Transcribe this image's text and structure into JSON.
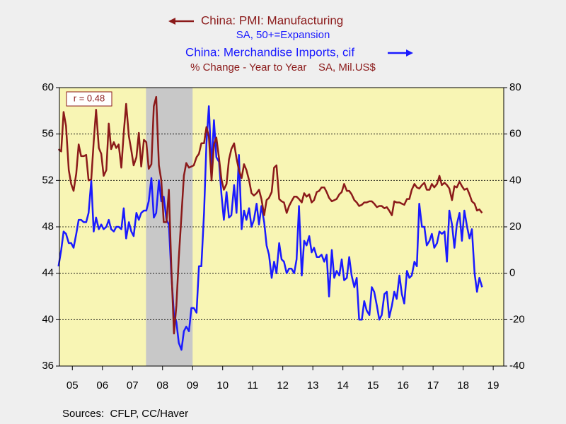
{
  "chart_data": {
    "type": "line",
    "series": [
      {
        "name": "China: PMI: Manufacturing",
        "note": "SA, 50+=Expansion",
        "color": "#8b1a1a",
        "axis": "y",
        "values": [
          54.7,
          54.5,
          57.9,
          56.7,
          52.9,
          51.7,
          51.1,
          52.6,
          55.1,
          54.1,
          54.1,
          54.2,
          52.0,
          52.1,
          55.3,
          58.1,
          54.8,
          54.3,
          52.4,
          52.9,
          56.9,
          54.7,
          55.3,
          54.8,
          55.1,
          53.1,
          56.1,
          58.6,
          55.8,
          54.6,
          53.3,
          54.0,
          56.1,
          53.2,
          55.5,
          55.3,
          53.0,
          53.4,
          58.4,
          59.2,
          53.3,
          52.0,
          48.4,
          48.4,
          51.2,
          44.6,
          38.8,
          41.2,
          45.3,
          49.0,
          52.4,
          53.5,
          53.1,
          53.2,
          53.3,
          54.0,
          54.3,
          55.2,
          55.2,
          56.6,
          55.8,
          52.0,
          55.1,
          55.7,
          53.9,
          52.1,
          51.2,
          51.7,
          53.8,
          54.7,
          55.2,
          53.9,
          52.9,
          52.2,
          53.4,
          52.9,
          52.0,
          50.9,
          50.7,
          50.9,
          51.2,
          50.4,
          49.0,
          50.3,
          50.5,
          51.0,
          53.1,
          53.3,
          50.4,
          50.2,
          50.1,
          49.2,
          49.8,
          50.2,
          50.6,
          50.6,
          50.4,
          50.1,
          50.9,
          50.6,
          50.8,
          50.1,
          50.3,
          51.0,
          51.1,
          51.4,
          51.4,
          51.0,
          50.5,
          50.2,
          50.3,
          50.4,
          50.8,
          51.0,
          51.7,
          51.1,
          51.1,
          50.8,
          50.3,
          50.1,
          49.8,
          49.9,
          50.1,
          50.1,
          50.2,
          50.2,
          50.0,
          49.7,
          49.8,
          49.8,
          49.6,
          49.7,
          49.4,
          49.0,
          50.2,
          50.1,
          50.1,
          50.0,
          49.9,
          50.4,
          50.4,
          51.2,
          51.7,
          51.4,
          51.3,
          51.6,
          51.8,
          51.2,
          51.2,
          51.7,
          51.4,
          51.7,
          52.4,
          51.6,
          51.8,
          51.6,
          51.3,
          50.3,
          51.5,
          51.4,
          51.9,
          51.5,
          51.2,
          51.3,
          50.8,
          50.2,
          50.0,
          49.4,
          49.5,
          49.2
        ]
      },
      {
        "name": "China: Merchandise Imports, cif",
        "note": "% Change - Year to Year    SA, Mil.US$",
        "color": "#1a1aff",
        "axis": "y2",
        "values": [
          3,
          10,
          18,
          17,
          13,
          13,
          11,
          17,
          23,
          23,
          22,
          22,
          26,
          40,
          18,
          24,
          19,
          21,
          19,
          20,
          23,
          19,
          18,
          20,
          20,
          19,
          28,
          15,
          22,
          18,
          16,
          26,
          23,
          26,
          27,
          27,
          31,
          41,
          24,
          26,
          40,
          31,
          33,
          23,
          21,
          0,
          -18,
          -21,
          -30,
          -33,
          -25,
          -23,
          -25,
          -15,
          -15,
          -17,
          3,
          3,
          26,
          56,
          72,
          45,
          66,
          50,
          48,
          34,
          23,
          35,
          24,
          25,
          38,
          26,
          51,
          19,
          27,
          23,
          28,
          20,
          23,
          30,
          21,
          29,
          22,
          12,
          8,
          -2,
          5,
          0,
          13,
          6,
          5,
          0,
          2,
          2,
          0,
          6,
          29,
          -1,
          14,
          12,
          16,
          9,
          11,
          7,
          7,
          8,
          5,
          8,
          -10,
          10,
          -2,
          1,
          -1,
          6,
          -3,
          -2,
          7,
          -1,
          -6,
          -2,
          -20,
          -20,
          -12,
          -16,
          -18,
          -6,
          -8,
          -14,
          -20,
          -18,
          -9,
          -8,
          -19,
          -14,
          -8,
          -11,
          -1,
          -9,
          -13,
          1,
          -2,
          -1,
          5,
          3,
          30,
          20,
          20,
          12,
          14,
          17,
          11,
          13,
          18,
          17,
          18,
          5,
          27,
          21,
          11,
          21,
          26,
          14,
          27,
          20,
          15,
          19,
          0,
          -8,
          -2,
          -6
        ]
      }
    ],
    "x": [
      2005.04,
      2005.13,
      2005.21,
      2005.29,
      2005.38,
      2005.46,
      2005.54,
      2005.63,
      2005.71,
      2005.79,
      2005.88,
      2005.96,
      2006.04,
      2006.13,
      2006.21,
      2006.29,
      2006.38,
      2006.46,
      2006.54,
      2006.63,
      2006.71,
      2006.79,
      2006.88,
      2006.96,
      2007.04,
      2007.13,
      2007.21,
      2007.29,
      2007.38,
      2007.46,
      2007.54,
      2007.63,
      2007.71,
      2007.79,
      2007.88,
      2007.96,
      2008.04,
      2008.13,
      2008.21,
      2008.29,
      2008.38,
      2008.46,
      2008.54,
      2008.63,
      2008.71,
      2008.79,
      2008.88,
      2008.96,
      2009.04,
      2009.13,
      2009.21,
      2009.29,
      2009.38,
      2009.46,
      2009.54,
      2009.63,
      2009.71,
      2009.79,
      2009.88,
      2009.96,
      2010.04,
      2010.13,
      2010.21,
      2010.29,
      2010.38,
      2010.46,
      2010.54,
      2010.63,
      2010.71,
      2010.79,
      2010.88,
      2010.96,
      2011.04,
      2011.13,
      2011.21,
      2011.29,
      2011.38,
      2011.46,
      2011.54,
      2011.63,
      2011.71,
      2011.79,
      2011.88,
      2011.96,
      2012.04,
      2012.13,
      2012.21,
      2012.29,
      2012.38,
      2012.46,
      2012.54,
      2012.63,
      2012.71,
      2012.79,
      2012.88,
      2012.96,
      2013.04,
      2013.13,
      2013.21,
      2013.29,
      2013.38,
      2013.46,
      2013.54,
      2013.63,
      2013.71,
      2013.79,
      2013.88,
      2013.96,
      2014.04,
      2014.13,
      2014.21,
      2014.29,
      2014.38,
      2014.46,
      2014.54,
      2014.63,
      2014.71,
      2014.79,
      2014.88,
      2014.96,
      2015.04,
      2015.13,
      2015.21,
      2015.29,
      2015.38,
      2015.46,
      2015.54,
      2015.63,
      2015.71,
      2015.79,
      2015.88,
      2015.96,
      2016.04,
      2016.13,
      2016.21,
      2016.29,
      2016.38,
      2016.46,
      2016.54,
      2016.63,
      2016.71,
      2016.79,
      2016.88,
      2016.96,
      2017.04,
      2017.13,
      2017.21,
      2017.29,
      2017.38,
      2017.46,
      2017.54,
      2017.63,
      2017.71,
      2017.79,
      2017.88,
      2017.96,
      2018.04,
      2018.13,
      2018.21,
      2018.29,
      2018.38,
      2018.46,
      2018.54,
      2018.63,
      2018.71,
      2018.79,
      2018.88,
      2018.96,
      2019.04,
      2019.13
    ],
    "xlim": [
      2005.07,
      2019.85
    ],
    "xticks": [
      {
        "value": 2005.5,
        "label": "05"
      },
      {
        "value": 2006.5,
        "label": "06"
      },
      {
        "value": 2007.5,
        "label": "07"
      },
      {
        "value": 2008.5,
        "label": "08"
      },
      {
        "value": 2009.5,
        "label": "09"
      },
      {
        "value": 2010.5,
        "label": "10"
      },
      {
        "value": 2011.5,
        "label": "11"
      },
      {
        "value": 2012.5,
        "label": "12"
      },
      {
        "value": 2013.5,
        "label": "13"
      },
      {
        "value": 2014.5,
        "label": "14"
      },
      {
        "value": 2015.5,
        "label": "15"
      },
      {
        "value": 2016.5,
        "label": "16"
      },
      {
        "value": 2017.5,
        "label": "17"
      },
      {
        "value": 2018.5,
        "label": "18"
      },
      {
        "value": 2019.5,
        "label": "19"
      }
    ],
    "ylim": [
      36,
      60
    ],
    "yticks": [
      36,
      40,
      44,
      48,
      52,
      56,
      60
    ],
    "y2lim": [
      -40,
      80
    ],
    "y2ticks": [
      -40,
      -20,
      0,
      20,
      40,
      60,
      80
    ],
    "grid": true,
    "shade": [
      2007.95,
      2009.5
    ],
    "annotation": "r = 0.48",
    "source": "Sources:  CFLP, CC/Haver"
  }
}
